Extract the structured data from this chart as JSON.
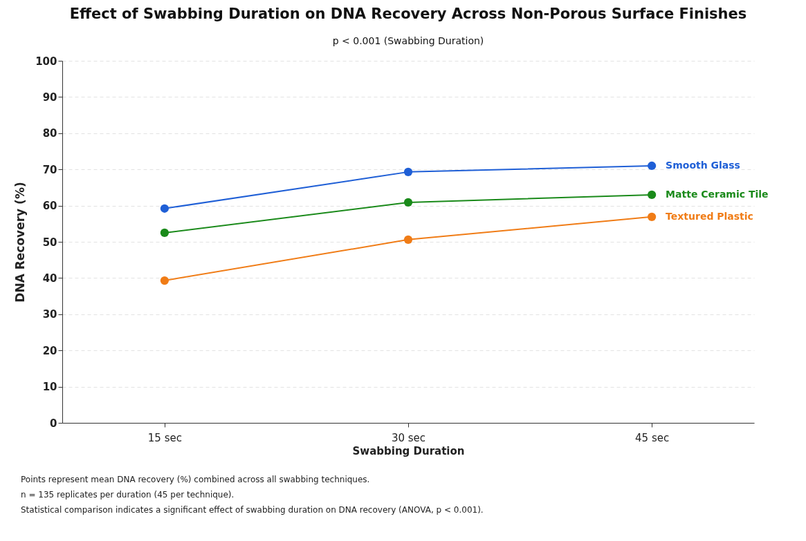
{
  "chart_data": {
    "type": "line",
    "title": "Effect of Swabbing Duration on DNA Recovery Across Non-Porous Surface Finishes",
    "subtitle": "p < 0.001 (Swabbing Duration)",
    "xlabel": "Swabbing Duration",
    "ylabel": "DNA Recovery (%)",
    "categories": [
      "15 sec",
      "30 sec",
      "45 sec"
    ],
    "series": [
      {
        "name": "Smooth Glass",
        "color": "#1f5fd6",
        "values": [
          59.2,
          69.3,
          71.0
        ]
      },
      {
        "name": "Matte Ceramic Tile",
        "color": "#1a8a1a",
        "values": [
          52.5,
          60.9,
          63.0
        ]
      },
      {
        "name": "Textured Plastic",
        "color": "#f07c16",
        "values": [
          39.3,
          50.6,
          56.9
        ]
      }
    ],
    "ylim": [
      0,
      100
    ],
    "yticks": [
      0,
      10,
      20,
      30,
      40,
      50,
      60,
      70,
      80,
      90,
      100
    ],
    "grid": "y",
    "legend": false,
    "marker": "circle",
    "line_style": "solid",
    "annotations": [
      "Points represent mean DNA recovery (%) combined across all swabbing techniques.",
      "n = 135 replicates per duration (45 per technique).",
      "Statistical comparison indicates a significant effect of swabbing duration on DNA recovery (ANOVA, p < 0.001)."
    ]
  }
}
